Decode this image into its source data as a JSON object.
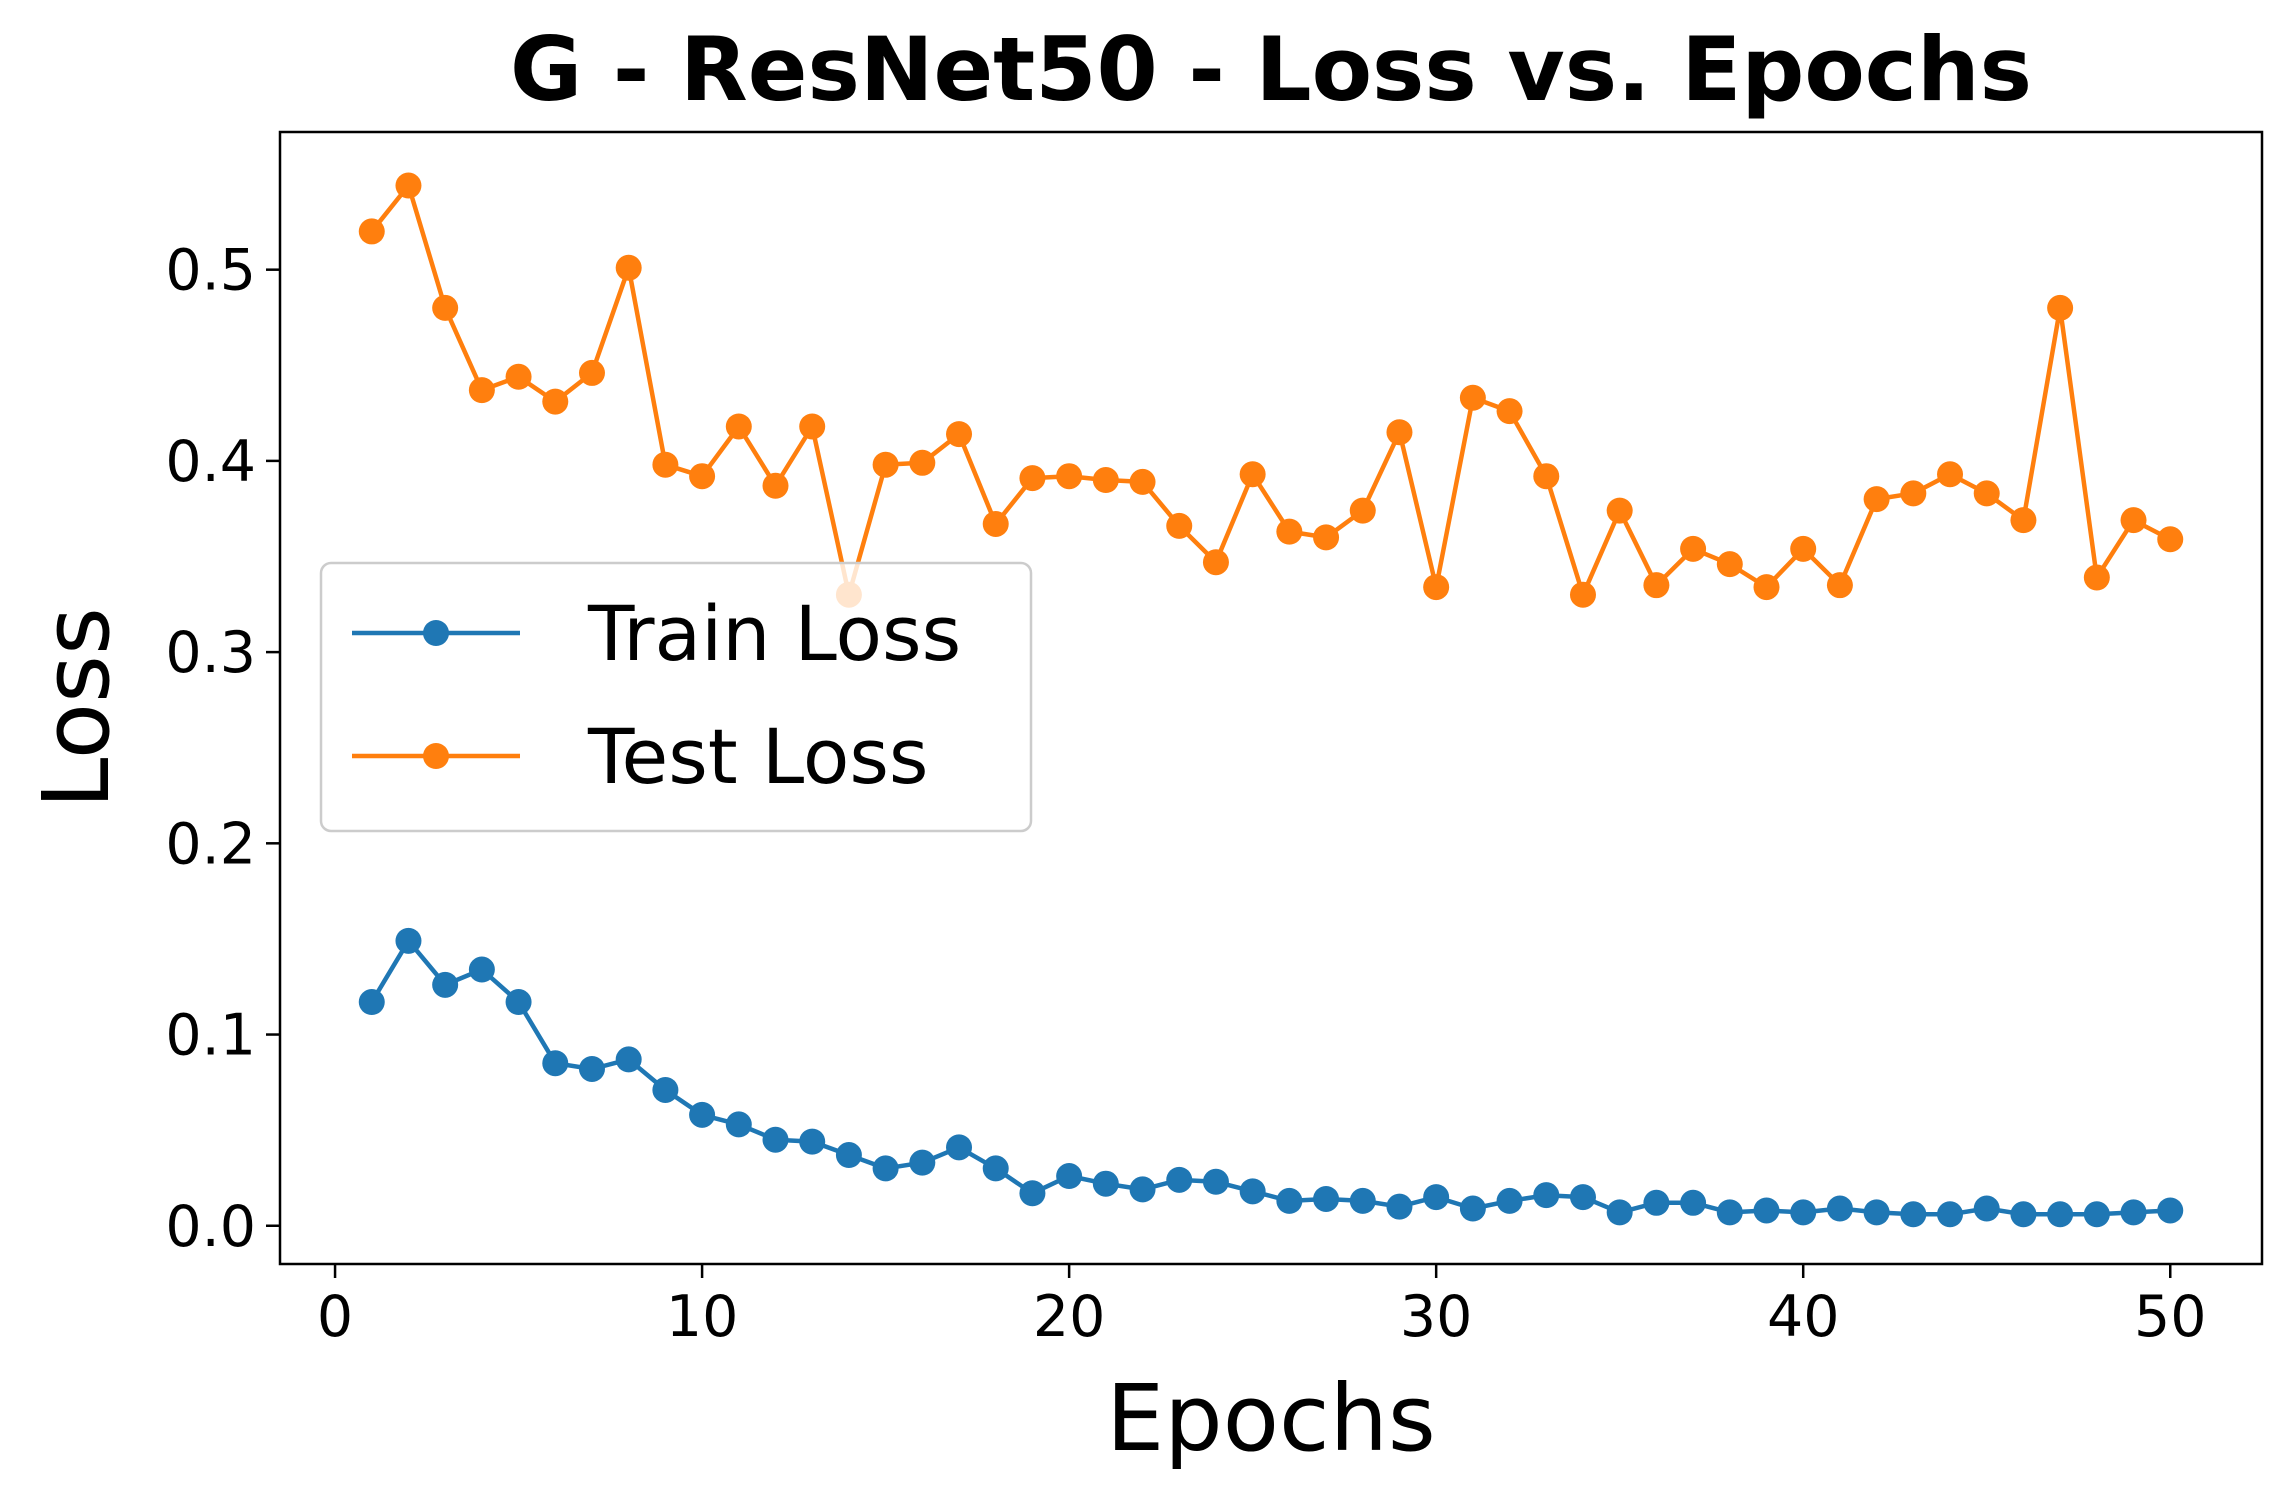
{
  "chart_data": {
    "type": "line",
    "title": "G - ResNet50 - Loss vs. Epochs",
    "xlabel": "Epochs",
    "ylabel": "Loss",
    "xlim": [
      -1.5,
      52.5
    ],
    "ylim": [
      -0.02,
      0.572
    ],
    "xticks": [
      0,
      10,
      20,
      30,
      40,
      50
    ],
    "xtick_labels": [
      "0",
      "10",
      "20",
      "30",
      "40",
      "50"
    ],
    "yticks": [
      0.0,
      0.1,
      0.2,
      0.3,
      0.4,
      0.5
    ],
    "ytick_labels": [
      "0.0",
      "0.1",
      "0.2",
      "0.3",
      "0.4",
      "0.5"
    ],
    "grid": false,
    "legend_position": "center-left",
    "x": [
      1,
      2,
      3,
      4,
      5,
      6,
      7,
      8,
      9,
      10,
      11,
      12,
      13,
      14,
      15,
      16,
      17,
      18,
      19,
      20,
      21,
      22,
      23,
      24,
      25,
      26,
      27,
      28,
      29,
      30,
      31,
      32,
      33,
      34,
      35,
      36,
      37,
      38,
      39,
      40,
      41,
      42,
      43,
      44,
      45,
      46,
      47,
      48,
      49,
      50
    ],
    "series": [
      {
        "name": "Train Loss",
        "color": "#1f77b4",
        "values": [
          0.117,
          0.149,
          0.126,
          0.134,
          0.117,
          0.085,
          0.082,
          0.087,
          0.071,
          0.058,
          0.053,
          0.045,
          0.044,
          0.037,
          0.03,
          0.033,
          0.041,
          0.03,
          0.017,
          0.026,
          0.022,
          0.019,
          0.024,
          0.023,
          0.018,
          0.013,
          0.014,
          0.013,
          0.01,
          0.015,
          0.009,
          0.013,
          0.016,
          0.015,
          0.007,
          0.012,
          0.012,
          0.007,
          0.008,
          0.007,
          0.009,
          0.007,
          0.006,
          0.006,
          0.009,
          0.006,
          0.006,
          0.006,
          0.007,
          0.008
        ]
      },
      {
        "name": "Test Loss",
        "color": "#ff7f0e",
        "values": [
          0.52,
          0.544,
          0.48,
          0.437,
          0.444,
          0.431,
          0.446,
          0.501,
          0.398,
          0.392,
          0.418,
          0.387,
          0.418,
          0.33,
          0.398,
          0.399,
          0.414,
          0.367,
          0.391,
          0.392,
          0.39,
          0.389,
          0.366,
          0.347,
          0.393,
          0.363,
          0.36,
          0.374,
          0.415,
          0.334,
          0.433,
          0.426,
          0.392,
          0.33,
          0.374,
          0.335,
          0.354,
          0.346,
          0.334,
          0.354,
          0.335,
          0.38,
          0.383,
          0.393,
          0.383,
          0.369,
          0.48,
          0.339,
          0.369,
          0.359
        ]
      }
    ]
  }
}
